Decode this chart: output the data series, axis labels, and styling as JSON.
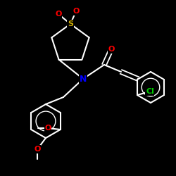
{
  "bg_color": "#000000",
  "bond_color": "#ffffff",
  "atom_colors": {
    "N": "#0000ff",
    "O": "#ff0000",
    "S": "#ccaa00",
    "Cl": "#00cc00"
  },
  "figsize": [
    2.5,
    2.5
  ],
  "dpi": 100,
  "xlim": [
    0,
    250
  ],
  "ylim": [
    0,
    250
  ]
}
